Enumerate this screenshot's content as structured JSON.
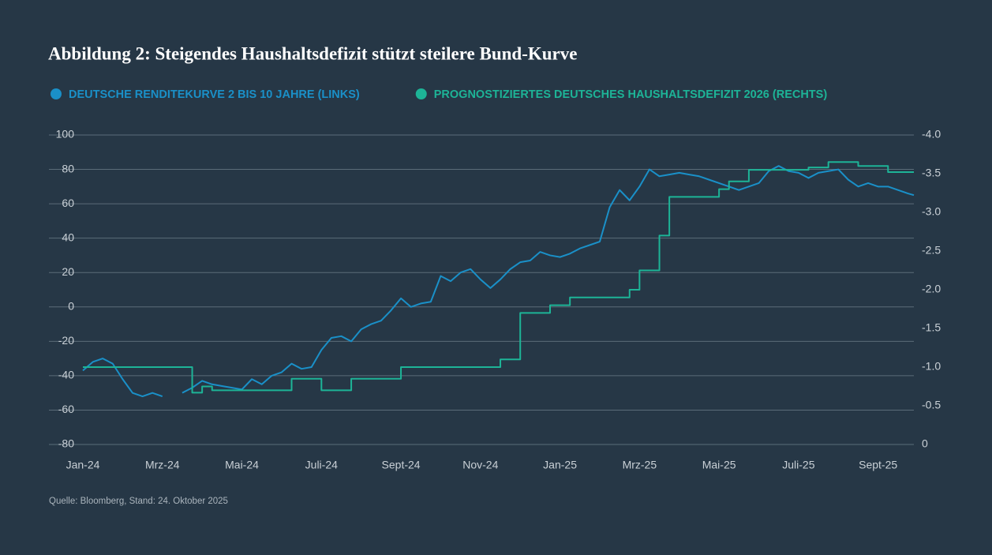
{
  "chart_data": {
    "type": "line",
    "title": "Abbildung 2: Steigendes Haushaltsdefizit stützt steilere Bund-Kurve",
    "source": "Quelle: Bloomberg, Stand: 24. Oktober 2025",
    "x": [
      0,
      0.25,
      0.5,
      0.75,
      1,
      1.25,
      1.5,
      1.75,
      2,
      2.25,
      2.5,
      2.75,
      3,
      3.25,
      3.5,
      3.75,
      4,
      4.25,
      4.5,
      4.75,
      5,
      5.25,
      5.5,
      5.75,
      6,
      6.25,
      6.5,
      6.75,
      7,
      7.25,
      7.5,
      7.75,
      8,
      8.25,
      8.5,
      8.75,
      9,
      9.25,
      9.5,
      9.75,
      10,
      10.25,
      10.5,
      10.75,
      11,
      11.25,
      11.5,
      11.75,
      12,
      12.25,
      12.5,
      12.75,
      13,
      13.25,
      13.5,
      13.75,
      14,
      14.25,
      14.5,
      14.75,
      15,
      15.25,
      15.5,
      15.75,
      16,
      16.25,
      16.5,
      16.75,
      17,
      17.25,
      17.5,
      17.75,
      18,
      18.25,
      18.5,
      18.75,
      19,
      19.25,
      19.5,
      19.75,
      20,
      20.25,
      20.5,
      20.75,
      20.9
    ],
    "xlim": [
      0,
      20.9
    ],
    "xticks": [
      {
        "value": 0,
        "label": "Jan-24"
      },
      {
        "value": 2,
        "label": "Mrz-24"
      },
      {
        "value": 4,
        "label": "Mai-24"
      },
      {
        "value": 6,
        "label": "Juli-24"
      },
      {
        "value": 8,
        "label": "Sept-24"
      },
      {
        "value": 10,
        "label": "Nov-24"
      },
      {
        "value": 12,
        "label": "Jan-25"
      },
      {
        "value": 14,
        "label": "Mrz-25"
      },
      {
        "value": 16,
        "label": "Mai-25"
      },
      {
        "value": 18,
        "label": "Juli-25"
      },
      {
        "value": 20,
        "label": "Sept-25"
      }
    ],
    "ylim": [
      -80,
      100
    ],
    "yticks": [
      -80,
      -60,
      -40,
      -20,
      0,
      20,
      40,
      60,
      80,
      100
    ],
    "y2lim": [
      0,
      -4
    ],
    "y2ticks": [
      0,
      -0.5,
      {
        "value": -1,
        "label": "-1.0"
      },
      -1.5,
      {
        "value": -2,
        "label": "-2.0"
      },
      -2.5,
      {
        "value": -3,
        "label": "-3.0"
      },
      -3.5,
      {
        "value": -4,
        "label": "-4.0"
      }
    ],
    "grid": true,
    "series": [
      {
        "name": "DEUTSCHE RENDITEKURVE 2 BIS 10 JAHRE (LINKS)",
        "color": "#1a90c8",
        "values": [
          -37,
          -32,
          -30,
          -33,
          -42,
          -50,
          -52,
          -50,
          -52,
          null,
          -50,
          -47,
          -43,
          -45,
          -46,
          -47,
          -48,
          -42,
          -45,
          -40,
          -38,
          -33,
          -36,
          -35,
          -25,
          -18,
          -17,
          -20,
          -13,
          -10,
          -8,
          -2,
          5,
          0,
          2,
          3,
          18,
          15,
          20,
          22,
          16,
          11,
          16,
          22,
          26,
          27,
          32,
          30,
          29,
          31,
          34,
          36,
          38,
          58,
          68,
          62,
          70,
          80,
          76,
          77,
          78,
          77,
          76,
          74,
          72,
          70,
          68,
          70,
          72,
          79,
          82,
          79,
          78,
          75,
          78,
          79,
          80,
          74,
          70,
          72,
          70,
          70,
          68,
          66,
          65
        ]
      },
      {
        "name": "PROGNOSTIZIERTES DEUTSCHES HAUSHALTSDEFIZIT 2026 (RECHTS)",
        "color": "#1db497",
        "axis": "y2",
        "step": true,
        "values": [
          -1,
          -1,
          -1,
          -1,
          -1,
          -1,
          -1,
          -1,
          -1,
          -1,
          -1,
          -0.67,
          -0.75,
          -0.7,
          -0.7,
          -0.7,
          -0.7,
          -0.7,
          -0.7,
          -0.7,
          -0.7,
          -0.85,
          -0.85,
          -0.85,
          -0.7,
          -0.7,
          -0.7,
          -0.85,
          -0.85,
          -0.85,
          -0.85,
          -0.85,
          -1,
          -1,
          -1,
          -1,
          -1,
          -1,
          -1,
          -1,
          -1,
          -1,
          -1.1,
          -1.1,
          -1.7,
          -1.7,
          -1.7,
          -1.8,
          -1.8,
          -1.9,
          -1.9,
          -1.9,
          -1.9,
          -1.9,
          -1.9,
          -2,
          -2.25,
          -2.25,
          -2.7,
          -3.2,
          -3.2,
          -3.2,
          -3.2,
          -3.2,
          -3.3,
          -3.4,
          -3.4,
          -3.55,
          -3.55,
          -3.55,
          -3.55,
          -3.55,
          -3.55,
          -3.58,
          -3.58,
          -3.65,
          -3.65,
          -3.65,
          -3.6,
          -3.6,
          -3.6,
          -3.52,
          -3.52,
          -3.52,
          -3.52
        ]
      }
    ]
  }
}
